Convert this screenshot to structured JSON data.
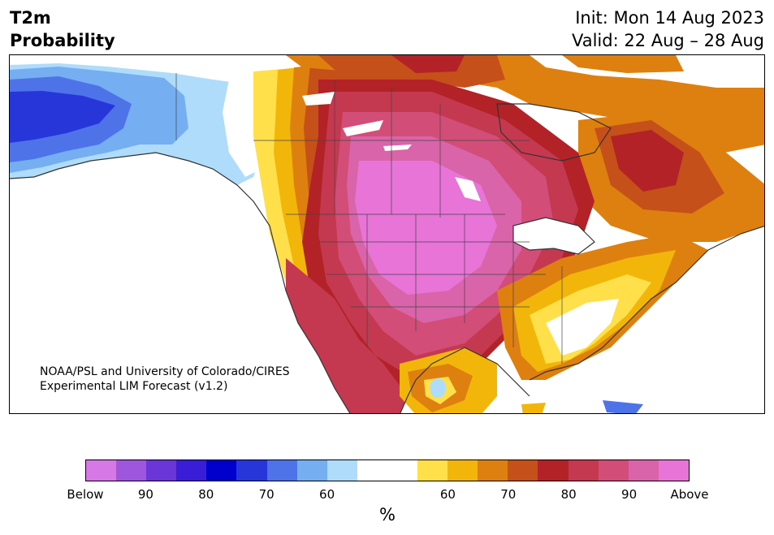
{
  "header": {
    "variable": "T2m",
    "product": "Probability",
    "init": "Init: Mon 14 Aug 2023",
    "valid": "Valid: 22 Aug – 28 Aug"
  },
  "credit": {
    "line1": "NOAA/PSL and University of Colorado/CIRES",
    "line2": "Experimental LIM Forecast (v1.2)"
  },
  "colorbar": {
    "unit": "%",
    "colors": [
      "#d678e6",
      "#9e56de",
      "#6a36d8",
      "#3a1dd6",
      "#0000cc",
      "#2636d8",
      "#4e72e8",
      "#76aef2",
      "#aedcfa",
      "#ffffff",
      "#ffffff",
      "#ffe04a",
      "#f2b60a",
      "#de8010",
      "#c6501a",
      "#b22226",
      "#c43850",
      "#d24e78",
      "#da64aa",
      "#e874d8"
    ],
    "tick_labels": [
      {
        "text": "Below",
        "index": 0
      },
      {
        "text": "90",
        "index": 2
      },
      {
        "text": "80",
        "index": 4
      },
      {
        "text": "70",
        "index": 6
      },
      {
        "text": "60",
        "index": 8
      },
      {
        "text": "60",
        "index": 12
      },
      {
        "text": "70",
        "index": 14
      },
      {
        "text": "80",
        "index": 16
      },
      {
        "text": "90",
        "index": 18
      },
      {
        "text": "Above",
        "index": 20
      }
    ]
  }
}
